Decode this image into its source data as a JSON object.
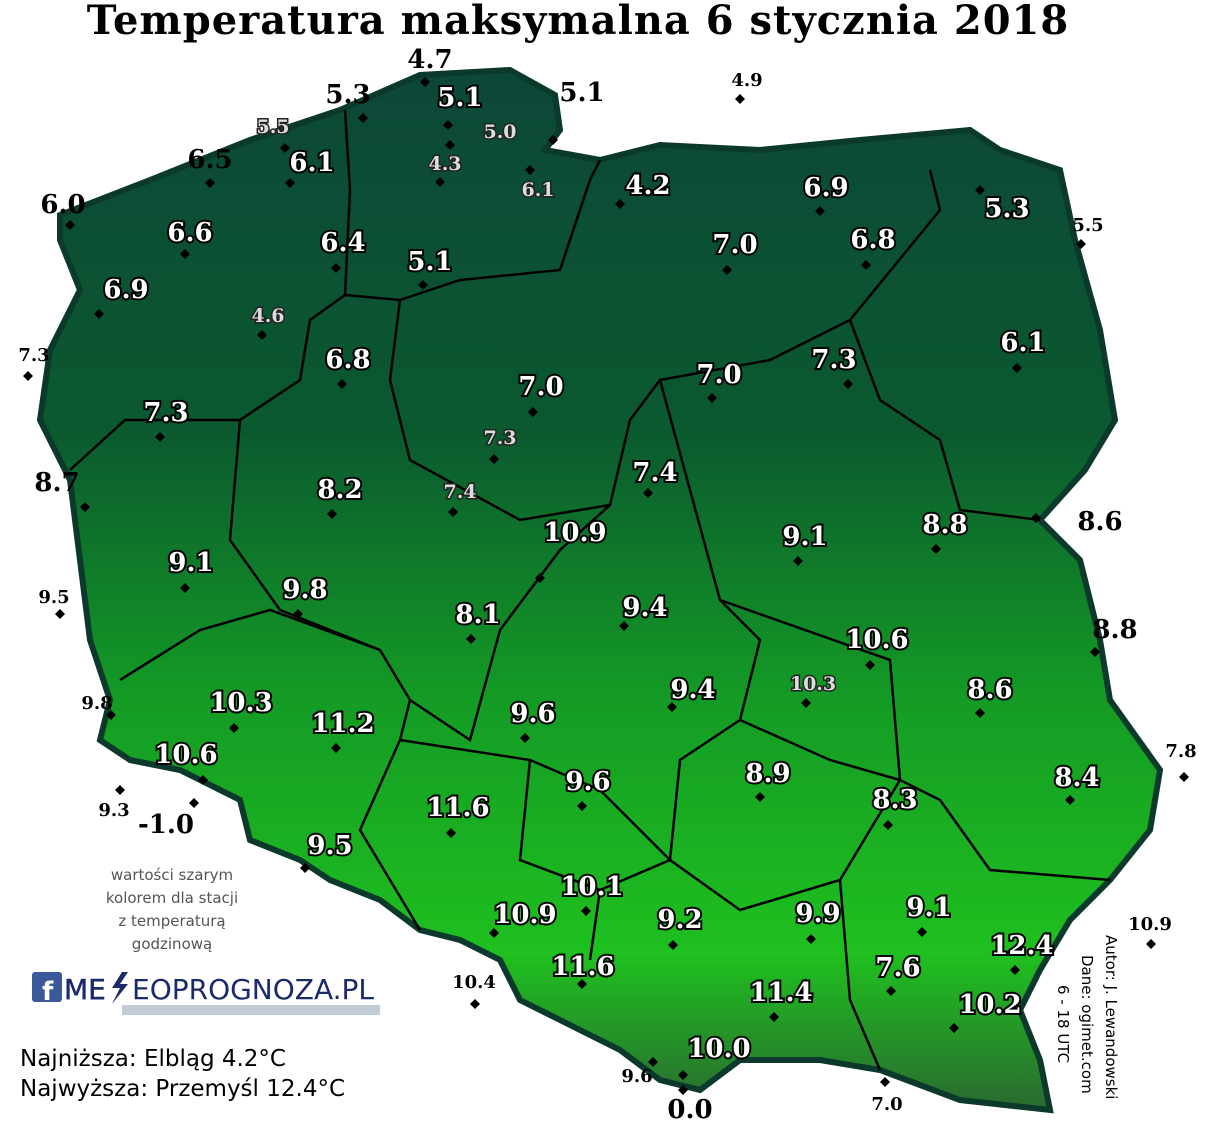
{
  "title": "Temperatura maksymalna 6 stycznia 2018",
  "stations": [
    "4.7",
    "5.3",
    "5.1",
    "5.1",
    "4.9",
    "5.5",
    "5.0",
    "6.5",
    "6.1",
    "4.3",
    "6.1",
    "4.2",
    "6.9",
    "5.3",
    "6.0",
    "5.5",
    "6.6",
    "6.4",
    "7.0",
    "6.8",
    "5.1",
    "6.9",
    "4.6",
    "6.1",
    "7.3",
    "6.8",
    "7.0",
    "7.3",
    "7.0",
    "7.3",
    "7.3",
    "7.4",
    "8.7",
    "8.2",
    "7.4",
    "10.9",
    "8.6",
    "8.8",
    "9.1",
    "9.1",
    "9.5",
    "9.8",
    "9.4",
    "8.1",
    "8.8",
    "10.6",
    "10.3",
    "9.4",
    "8.6",
    "9.8",
    "10.3",
    "11.2",
    "9.6",
    "7.8",
    "10.6",
    "8.4",
    "9.6",
    "8.9",
    "9.3",
    "8.3",
    "11.6",
    "-1.0",
    "9.5",
    "10.1",
    "10.9",
    "9.2",
    "9.9",
    "9.1",
    "10.9",
    "12.4",
    "11.6",
    "7.6",
    "10.4",
    "11.4",
    "10.2",
    "10.0",
    "9.6",
    "7.0",
    "0.0"
  ],
  "note": [
    "wartości szarym",
    "kolorem dla stacji",
    "z temperaturą",
    "godzinową"
  ],
  "logo": [
    "ME",
    "EOPROGNOZA.PL"
  ],
  "summary": [
    "Najniższa: Elbląg 4.2°C",
    "Najwyższa: Przemyśl 12.4°C"
  ],
  "credits": [
    "Autor: J. Lewandowski",
    "Dane: ogimet.com",
    "6 - 18 UTC"
  ]
}
